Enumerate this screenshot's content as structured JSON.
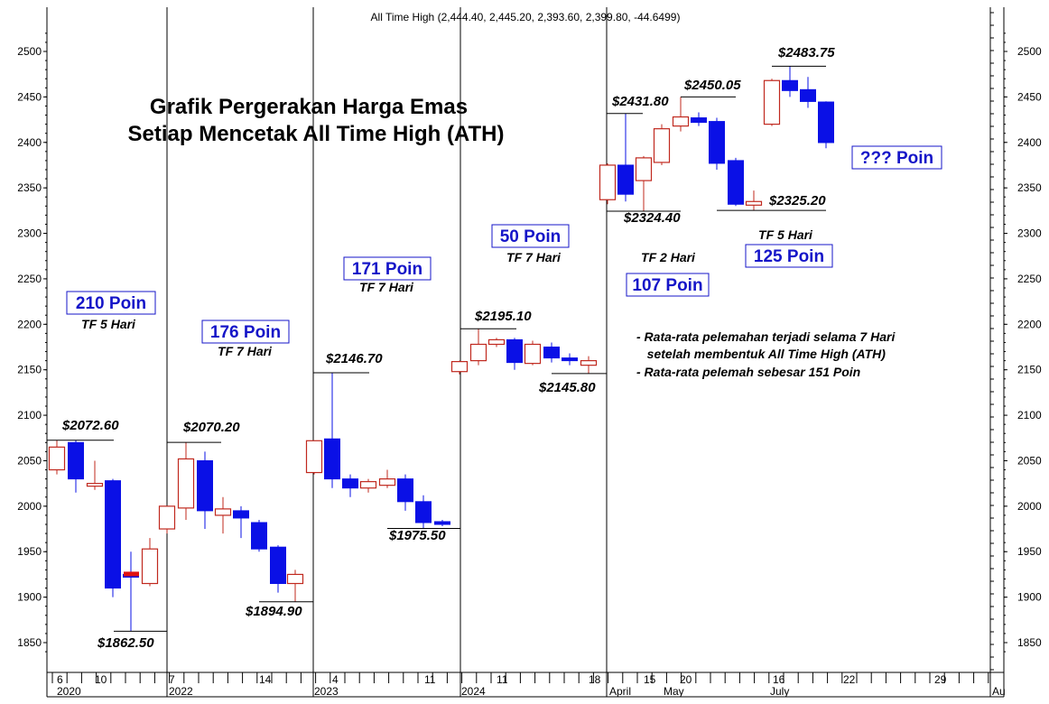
{
  "header": {
    "ohlc_label": "All Time High (2,444.40, 2,445.20, 2,393.60, 2,399.80, -44.6499)"
  },
  "title": {
    "line1": "Grafik Pergerakan Harga Emas",
    "line2": "Setiap Mencetak All Time High (ATH)"
  },
  "notes": [
    "- Rata-rata pelemahan terjadi selama 7 Hari",
    "   setelah membentuk All Time High (ATH)",
    "- Rata-rata pelemah sebesar 151 Poin"
  ],
  "colors": {
    "up": "#c0281e",
    "down": "#0a10e6",
    "box_border": "#1515c8",
    "line": "#000000",
    "doji": "#e01010"
  },
  "chart_data": {
    "type": "candlestick",
    "title": "Grafik Pergerakan Harga Emas Setiap Mencetak All Time High (ATH)",
    "ylim": [
      1830,
      2530
    ],
    "y_ticks": [
      1850,
      1900,
      1950,
      2000,
      2050,
      2100,
      2150,
      2200,
      2250,
      2300,
      2350,
      2400,
      2450,
      2500
    ],
    "x_tick_labels": [
      "6",
      "10",
      "7",
      "14",
      "4",
      "11",
      "11",
      "18",
      "15",
      "20",
      "16",
      "22",
      "29"
    ],
    "x_period_labels": [
      "2020",
      "2022",
      "2023",
      "2024",
      "April",
      "May",
      "July",
      "Au"
    ],
    "segments": [
      {
        "name": "2020",
        "candles": [
          {
            "o": 2040,
            "h": 2072.6,
            "l": 2035,
            "c": 2065
          },
          {
            "o": 2070,
            "h": 2072.6,
            "l": 2015,
            "c": 2030
          },
          {
            "o": 2025,
            "h": 2050,
            "l": 2018,
            "c": 2025
          },
          {
            "o": 2028,
            "h": 2030,
            "l": 1900,
            "c": 1910
          },
          {
            "o": 1925,
            "h": 1950,
            "l": 1862.5,
            "c": 1922
          },
          {
            "o": 1915,
            "h": 1965,
            "l": 1912,
            "c": 1953
          }
        ]
      },
      {
        "name": "2022",
        "candles": [
          {
            "o": 1975,
            "h": 2000,
            "l": 1970,
            "c": 2000
          },
          {
            "o": 1998,
            "h": 2070.2,
            "l": 1985,
            "c": 2052
          },
          {
            "o": 2050,
            "h": 2060,
            "l": 1975,
            "c": 1995
          },
          {
            "o": 1990,
            "h": 2010,
            "l": 1970,
            "c": 1997
          },
          {
            "o": 1995,
            "h": 2000,
            "l": 1965,
            "c": 1987
          },
          {
            "o": 1982,
            "h": 1985,
            "l": 1950,
            "c": 1953
          },
          {
            "o": 1955,
            "h": 1957,
            "l": 1905,
            "c": 1915
          },
          {
            "o": 1915,
            "h": 1930,
            "l": 1894.9,
            "c": 1925
          }
        ]
      },
      {
        "name": "2023",
        "candles": [
          {
            "o": 2037,
            "h": 2072,
            "l": 2035,
            "c": 2072
          },
          {
            "o": 2074,
            "h": 2146.7,
            "l": 2020,
            "c": 2030
          },
          {
            "o": 2030,
            "h": 2035,
            "l": 2010,
            "c": 2020
          },
          {
            "o": 2020,
            "h": 2030,
            "l": 2015,
            "c": 2027
          },
          {
            "o": 2023,
            "h": 2040,
            "l": 2020,
            "c": 2030
          },
          {
            "o": 2030,
            "h": 2035,
            "l": 1995,
            "c": 2005
          },
          {
            "o": 2005,
            "h": 2012,
            "l": 1975.5,
            "c": 1982
          },
          {
            "o": 1983,
            "h": 1985,
            "l": 1978,
            "c": 1980
          }
        ]
      },
      {
        "name": "2024",
        "candles": [
          {
            "o": 2148,
            "h": 2160,
            "l": 2145,
            "c": 2159
          },
          {
            "o": 2160,
            "h": 2195.1,
            "l": 2155,
            "c": 2178
          },
          {
            "o": 2178,
            "h": 2185,
            "l": 2175,
            "c": 2183
          },
          {
            "o": 2183,
            "h": 2185,
            "l": 2150,
            "c": 2158
          },
          {
            "o": 2157,
            "h": 2182,
            "l": 2155,
            "c": 2178
          },
          {
            "o": 2175,
            "h": 2180,
            "l": 2158,
            "c": 2163
          },
          {
            "o": 2163,
            "h": 2168,
            "l": 2155,
            "c": 2160
          },
          {
            "o": 2155,
            "h": 2165,
            "l": 2145.8,
            "c": 2160
          }
        ]
      },
      {
        "name": "2024-Apr-Jul",
        "candles": [
          {
            "o": 2337,
            "h": 2377,
            "l": 2332,
            "c": 2375
          },
          {
            "o": 2375,
            "h": 2431.8,
            "l": 2335,
            "c": 2343
          },
          {
            "o": 2358,
            "h": 2385,
            "l": 2324.4,
            "c": 2383
          },
          {
            "o": 2378,
            "h": 2420,
            "l": 2375,
            "c": 2415
          },
          {
            "o": 2418,
            "h": 2450.05,
            "l": 2412,
            "c": 2428
          },
          {
            "o": 2427,
            "h": 2433,
            "l": 2418,
            "c": 2422
          },
          {
            "o": 2423,
            "h": 2427,
            "l": 2370,
            "c": 2377
          },
          {
            "o": 2380,
            "h": 2383,
            "l": 2330,
            "c": 2332
          },
          {
            "o": 2331,
            "h": 2347,
            "l": 2325.2,
            "c": 2335
          },
          {
            "o": 2420,
            "h": 2470,
            "l": 2418,
            "c": 2468
          },
          {
            "o": 2468,
            "h": 2483.75,
            "l": 2450,
            "c": 2457
          },
          {
            "o": 2458,
            "h": 2472,
            "l": 2438,
            "c": 2445
          },
          {
            "o": 2444.4,
            "h": 2445.2,
            "l": 2393.6,
            "c": 2399.8
          }
        ]
      }
    ],
    "price_labels": [
      "$2072.60",
      "$1862.50",
      "$2070.20",
      "$1894.90",
      "$2146.70",
      "$1975.50",
      "$2195.10",
      "$2145.80",
      "$2431.80",
      "$2324.40",
      "$2450.05",
      "$2325.20",
      "$2483.75"
    ],
    "boxes": [
      "210 Poin",
      "176 Poin",
      "171 Poin",
      "50 Poin",
      "107 Poin",
      "125 Poin",
      "??? Poin"
    ],
    "tf_labels": [
      "TF 5 Hari",
      "TF 7 Hari",
      "TF 7 Hari",
      "TF 7 Hari",
      "TF 2 Hari",
      "TF 5 Hari"
    ]
  }
}
